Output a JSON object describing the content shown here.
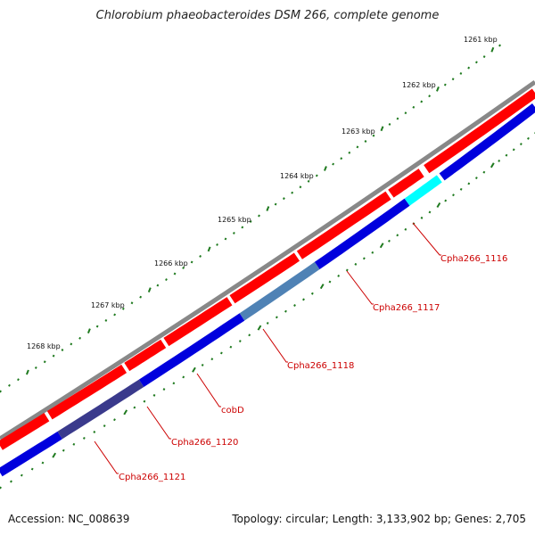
{
  "title": "Chlorobium phaeobacteroides DSM 266, complete genome",
  "accession": "Accession: NC_008639",
  "summary": "Topology: circular; Length: 3,133,902 bp; Genes: 2,705",
  "ruler": [
    "1261 kbp",
    "1262 kbp",
    "1263 kbp",
    "1264 kbp",
    "1265 kbp",
    "1266 kbp",
    "1267 kbp",
    "1268 kbp"
  ],
  "colors": {
    "backbone": "#888888",
    "forward_cds": "#ff0000",
    "reverse_cds": "#0000dd",
    "highlight_1116": "#00ffff",
    "highlight_1118": "#4f82b5",
    "highlight_1121": "#3a3a8c",
    "label": "#cc0000",
    "tick": "#1f7a1f"
  },
  "labels": [
    {
      "name": "Cpha266_1116",
      "text": "Cpha266_1116"
    },
    {
      "name": "Cpha266_1117",
      "text": "Cpha266_1117"
    },
    {
      "name": "Cpha266_1118",
      "text": "Cpha266_1118"
    },
    {
      "name": "cobD",
      "text": "cobD"
    },
    {
      "name": "Cpha266_1120",
      "text": "Cpha266_1120"
    },
    {
      "name": "Cpha266_1121",
      "text": "Cpha266_1121"
    }
  ]
}
